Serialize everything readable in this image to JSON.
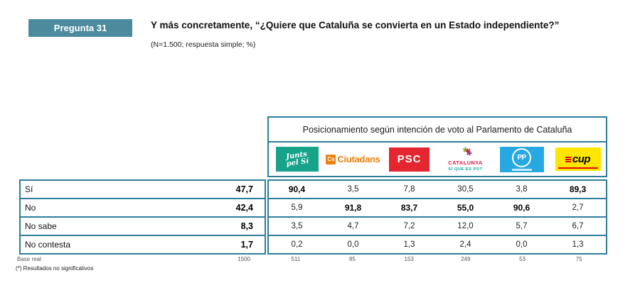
{
  "colors": {
    "line": "#2e7e9a",
    "badge_bg": "#4c8b9d",
    "jxsi_bg": "#17a38a",
    "cs_orange": "#ee7f0d",
    "psc_red": "#e32630",
    "csqp_red": "#e5173f",
    "csqp_teal": "#00a5a5",
    "csqp_green": "#6cb52d",
    "csqp_purple": "#8e3a80",
    "pp_blue": "#28a8e0",
    "cup_yellow": "#ffe600",
    "cup_red": "#e30613"
  },
  "question": {
    "badge": "Pregunta 31",
    "title": "Y más concretamente, “¿Quiere que Cataluña se convierta en un Estado independiente?”",
    "subtitle": "(N=1.500; respuesta simple; %)"
  },
  "table": {
    "header": "Posicionamiento según intención de voto al Parlamento de Cataluña",
    "parties": [
      {
        "name": "Junts pel Sí",
        "logo_line1": "Junts",
        "logo_line2": "pel Sí"
      },
      {
        "name": "Ciutadans",
        "badge": "Cs",
        "logo_text": "Ciutadans"
      },
      {
        "name": "PSC",
        "logo_text": "PSC"
      },
      {
        "name": "Catalunya Sí que es Pot",
        "logo_line1": "CATALUNYA",
        "logo_line2": "SÍ QUE ES POT"
      },
      {
        "name": "PP",
        "logo_text": "PP"
      },
      {
        "name": "CUP",
        "logo_text": "cup"
      }
    ],
    "rows": [
      {
        "label": "Sí",
        "total": "47,7",
        "values": [
          "90,4",
          "3,5",
          "7,8",
          "30,5",
          "3,8",
          "89,3"
        ],
        "bold": [
          true,
          false,
          false,
          false,
          false,
          true
        ]
      },
      {
        "label": "No",
        "total": "42,4",
        "values": [
          "5,9",
          "91,8",
          "83,7",
          "55,0",
          "90,6",
          "2,7"
        ],
        "bold": [
          false,
          true,
          true,
          true,
          true,
          false
        ]
      },
      {
        "label": "No sabe",
        "total": "8,3",
        "values": [
          "3,5",
          "4,7",
          "7,2",
          "12,0",
          "5,7",
          "6,7"
        ],
        "bold": [
          false,
          false,
          false,
          false,
          false,
          false
        ]
      },
      {
        "label": "No contesta",
        "total": "1,7",
        "values": [
          "0,2",
          "0,0",
          "1,3",
          "2,4",
          "0,0",
          "1,3"
        ],
        "bold": [
          false,
          false,
          false,
          false,
          false,
          false
        ]
      }
    ],
    "base": {
      "label": "Base real",
      "total": "1500",
      "values": [
        "511",
        "85",
        "153",
        "249",
        "53",
        "75"
      ]
    },
    "footnote": "(*) Resultados no significativos"
  }
}
